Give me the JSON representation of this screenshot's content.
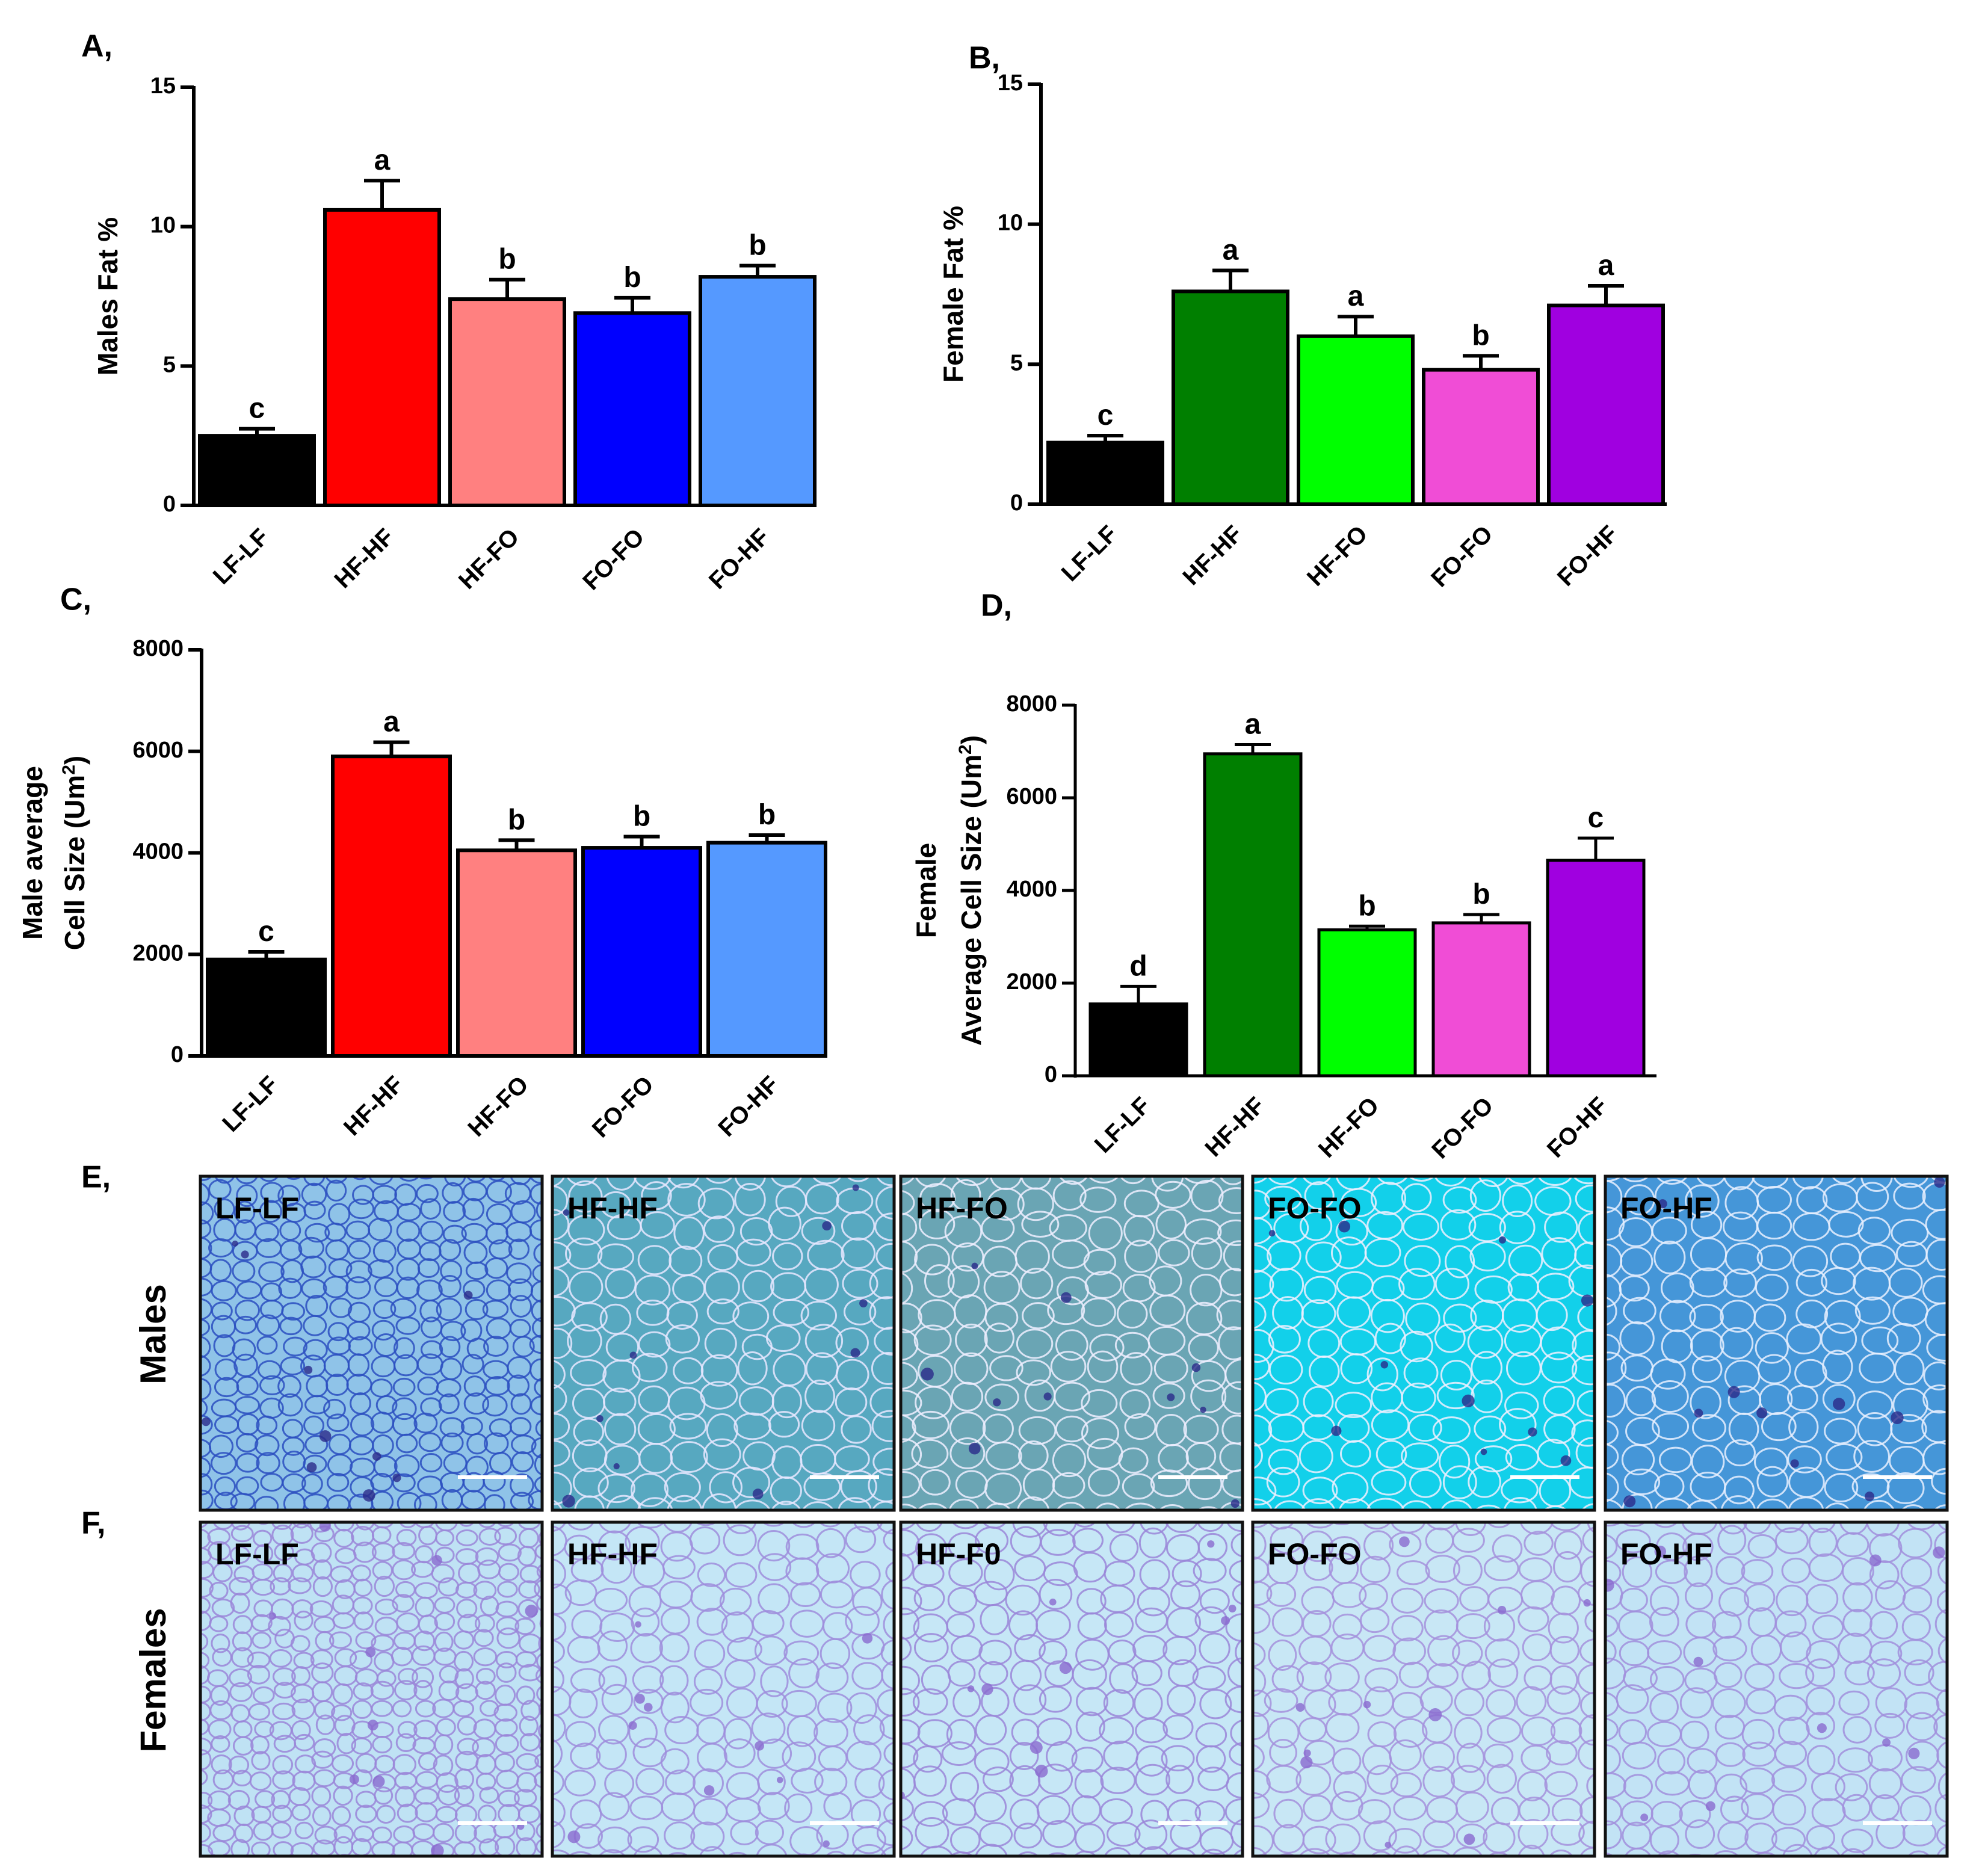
{
  "chart_data": [
    {
      "id": "A",
      "type": "bar",
      "panel_label": "A,",
      "ylabel": "Males Fat %",
      "ylim": [
        0,
        15
      ],
      "yticks": [
        "0",
        "5",
        "10",
        "15"
      ],
      "categories": [
        "LF-LF",
        "HF-HF",
        "HF-FO",
        "FO-FO",
        "FO-HF"
      ],
      "values": [
        2.5,
        10.6,
        7.4,
        6.9,
        8.2
      ],
      "errors": [
        0.25,
        1.05,
        0.7,
        0.55,
        0.4
      ],
      "significance": [
        "c",
        "a",
        "b",
        "b",
        "b"
      ],
      "colors": [
        "#000000",
        "#ff0000",
        "#ff8080",
        "#0000ff",
        "#5599ff"
      ]
    },
    {
      "id": "B",
      "type": "bar",
      "panel_label": "B,",
      "ylabel": "Female Fat %",
      "ylim": [
        0,
        15
      ],
      "yticks": [
        "0",
        "5",
        "10",
        "15"
      ],
      "categories": [
        "LF-LF",
        "HF-HF",
        "HF-FO",
        "FO-FO",
        "FO-HF"
      ],
      "values": [
        2.2,
        7.6,
        6.0,
        4.8,
        7.1
      ],
      "errors": [
        0.25,
        0.75,
        0.7,
        0.5,
        0.7
      ],
      "significance": [
        "c",
        "a",
        "a",
        "b",
        "a"
      ],
      "colors": [
        "#000000",
        "#007f00",
        "#00ff00",
        "#f04dd6",
        "#a000e0"
      ]
    },
    {
      "id": "C",
      "type": "bar",
      "panel_label": "C,",
      "ylabel_lines": [
        "Male average",
        "Cell Size (Um",
        "2",
        ")"
      ],
      "ylim": [
        0,
        8000
      ],
      "yticks": [
        "0",
        "2000",
        "4000",
        "6000",
        "8000"
      ],
      "categories": [
        "LF-LF",
        "HF-HF",
        "HF-FO",
        "FO-FO",
        "FO-HF"
      ],
      "values": [
        1900,
        5900,
        4050,
        4100,
        4200
      ],
      "errors": [
        150,
        280,
        200,
        220,
        150
      ],
      "significance": [
        "c",
        "a",
        "b",
        "b",
        "b"
      ],
      "colors": [
        "#000000",
        "#ff0000",
        "#ff8080",
        "#0000ff",
        "#5599ff"
      ]
    },
    {
      "id": "D",
      "type": "bar",
      "panel_label": "D,",
      "ylabel_lines": [
        "Female",
        "Average Cell Size (Um",
        "2",
        ")"
      ],
      "ylim": [
        0,
        8000
      ],
      "yticks": [
        "0",
        "2000",
        "4000",
        "6000",
        "8000"
      ],
      "categories": [
        "LF-LF",
        "HF-HF",
        "HF-FO",
        "FO-FO",
        "FO-HF"
      ],
      "values": [
        1550,
        6950,
        3150,
        3300,
        4650
      ],
      "errors": [
        380,
        200,
        80,
        180,
        480
      ],
      "significance": [
        "d",
        "a",
        "b",
        "b",
        "c"
      ],
      "colors": [
        "#000000",
        "#007f00",
        "#00ff00",
        "#f04dd6",
        "#a000e0"
      ]
    }
  ],
  "histology": {
    "rows": [
      {
        "panel_label": "E,",
        "row_label": "Males",
        "tiles": [
          {
            "label": "LF-LF",
            "bg": "#8fc3e8",
            "line": "#2c4fbf"
          },
          {
            "label": "HF-HF",
            "bg": "#57a8c0",
            "line": "#e8e8ff"
          },
          {
            "label": "HF-FO",
            "bg": "#6aa5b4",
            "line": "#eeeeff"
          },
          {
            "label": "FO-FO",
            "bg": "#12d0ea",
            "line": "#f0f0ff"
          },
          {
            "label": "FO-HF",
            "bg": "#4596d8",
            "line": "#e8f0ff"
          }
        ]
      },
      {
        "panel_label": "F,",
        "row_label": "Females",
        "tiles": [
          {
            "label": "LF-LF",
            "bg": "#bfe2f4",
            "line": "#9a86d8"
          },
          {
            "label": "HF-HF",
            "bg": "#c4e6f6",
            "line": "#9f8ddc"
          },
          {
            "label": "HF-F0",
            "bg": "#c6e7f6",
            "line": "#9a86d8"
          },
          {
            "label": "FO-FO",
            "bg": "#c8e7f5",
            "line": "#a491dc"
          },
          {
            "label": "FO-HF",
            "bg": "#c2e3f5",
            "line": "#a18fdc"
          }
        ]
      }
    ]
  }
}
